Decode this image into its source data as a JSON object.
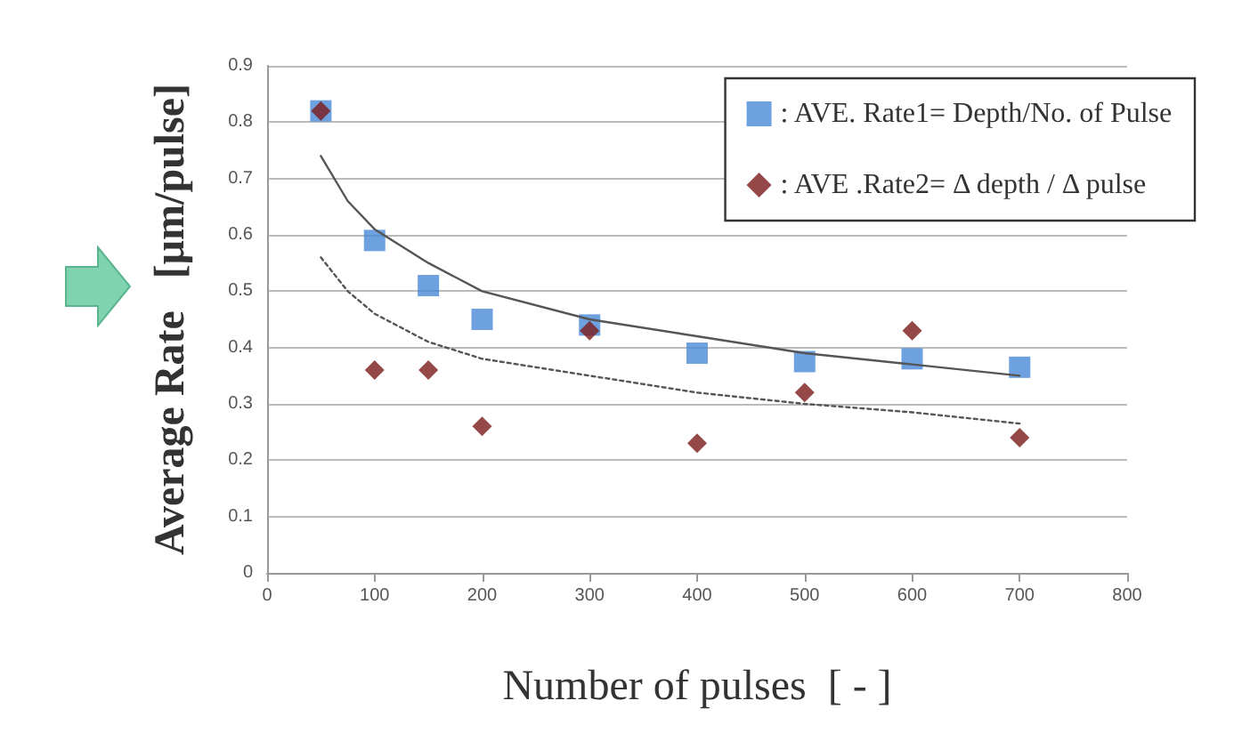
{
  "chart_data": {
    "type": "scatter",
    "xlabel": "Number of pulses  [ - ]",
    "ylabel": "Average Rate   [μm/pulse]",
    "x": [
      50,
      100,
      150,
      200,
      300,
      400,
      500,
      600,
      700
    ],
    "series": [
      {
        "name": ": AVE. Rate1= Depth/No. of Pulse",
        "color": "#4a8ad8",
        "marker": "square",
        "values": [
          0.82,
          0.59,
          0.51,
          0.45,
          0.44,
          0.39,
          0.375,
          0.38,
          0.365
        ]
      },
      {
        "name": ": AVE .Rate2= Δ depth / Δ pulse",
        "color": "#7b1a1a",
        "marker": "diamond",
        "values": [
          0.82,
          0.36,
          0.36,
          0.26,
          0.43,
          0.23,
          0.32,
          0.43,
          0.24
        ]
      },
      {
        "type": "line",
        "color": "#555555",
        "line_style": "solid",
        "marker": "none",
        "x": [
          50,
          75,
          100,
          150,
          200,
          300,
          400,
          500,
          600,
          700
        ],
        "values": [
          0.74,
          0.66,
          0.61,
          0.55,
          0.5,
          0.45,
          0.42,
          0.39,
          0.37,
          0.35
        ]
      },
      {
        "type": "line",
        "color": "#555555",
        "line_style": "dotted",
        "marker": "none",
        "x": [
          50,
          75,
          100,
          150,
          200,
          300,
          400,
          500,
          600,
          700
        ],
        "values": [
          0.56,
          0.5,
          0.46,
          0.41,
          0.38,
          0.35,
          0.32,
          0.3,
          0.285,
          0.265
        ]
      }
    ],
    "xlim": [
      0,
      800
    ],
    "xticks": [
      0,
      100,
      200,
      300,
      400,
      500,
      600,
      700,
      800
    ],
    "ylim": [
      0,
      0.9
    ],
    "yticks": [
      0,
      0.1,
      0.2,
      0.3,
      0.4,
      0.5,
      0.6,
      0.7,
      0.8,
      0.9
    ],
    "grid": "y",
    "legend": "top right"
  }
}
